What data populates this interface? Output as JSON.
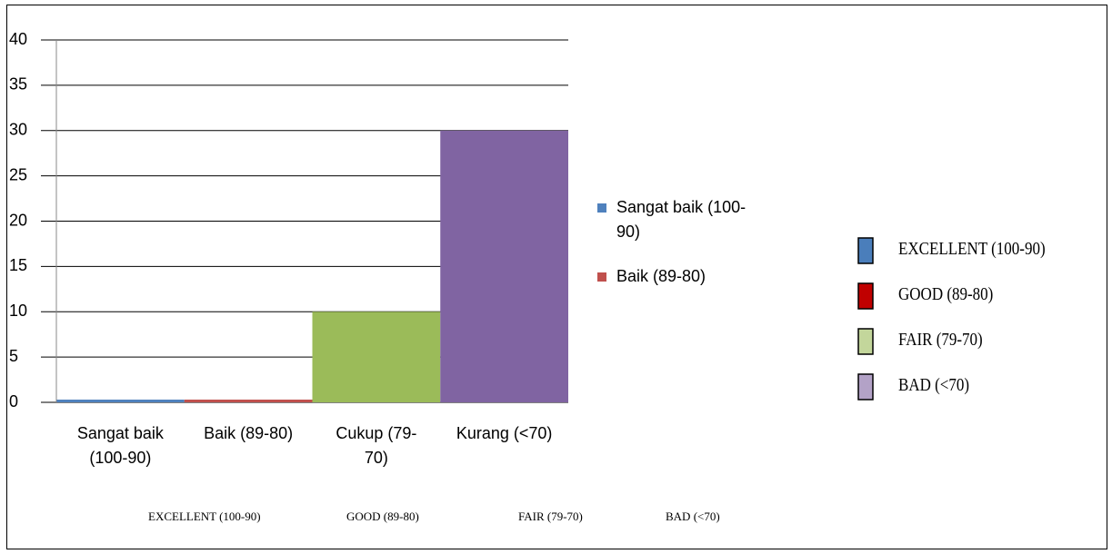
{
  "chart_data": {
    "type": "bar",
    "categories": [
      "Sangat baik (100-90)",
      "Baik (89-80)",
      "Cukup (79-70)",
      "Kurang (<70)"
    ],
    "values": [
      0.3,
      0.3,
      10,
      30
    ],
    "colors": [
      "#4f81bd",
      "#c0504d",
      "#9bbb59",
      "#8064a2"
    ],
    "ylim": [
      0,
      40
    ],
    "yticks": [
      0,
      5,
      10,
      15,
      20,
      25,
      30,
      35,
      40
    ],
    "grid": true,
    "legend": {
      "position": "right",
      "entries": [
        "Sangat baik (100-90)",
        "Baik (89-80)"
      ]
    }
  },
  "translation_legend": [
    {
      "label": "EXCELLENT (100-90)",
      "color": "#4a7ebb"
    },
    {
      "label": "GOOD (89-80)",
      "color": "#c00000"
    },
    {
      "label": "FAIR (79-70)",
      "color": "#c3d69b"
    },
    {
      "label": "BAD (<70)",
      "color": "#b3a2c7"
    }
  ]
}
